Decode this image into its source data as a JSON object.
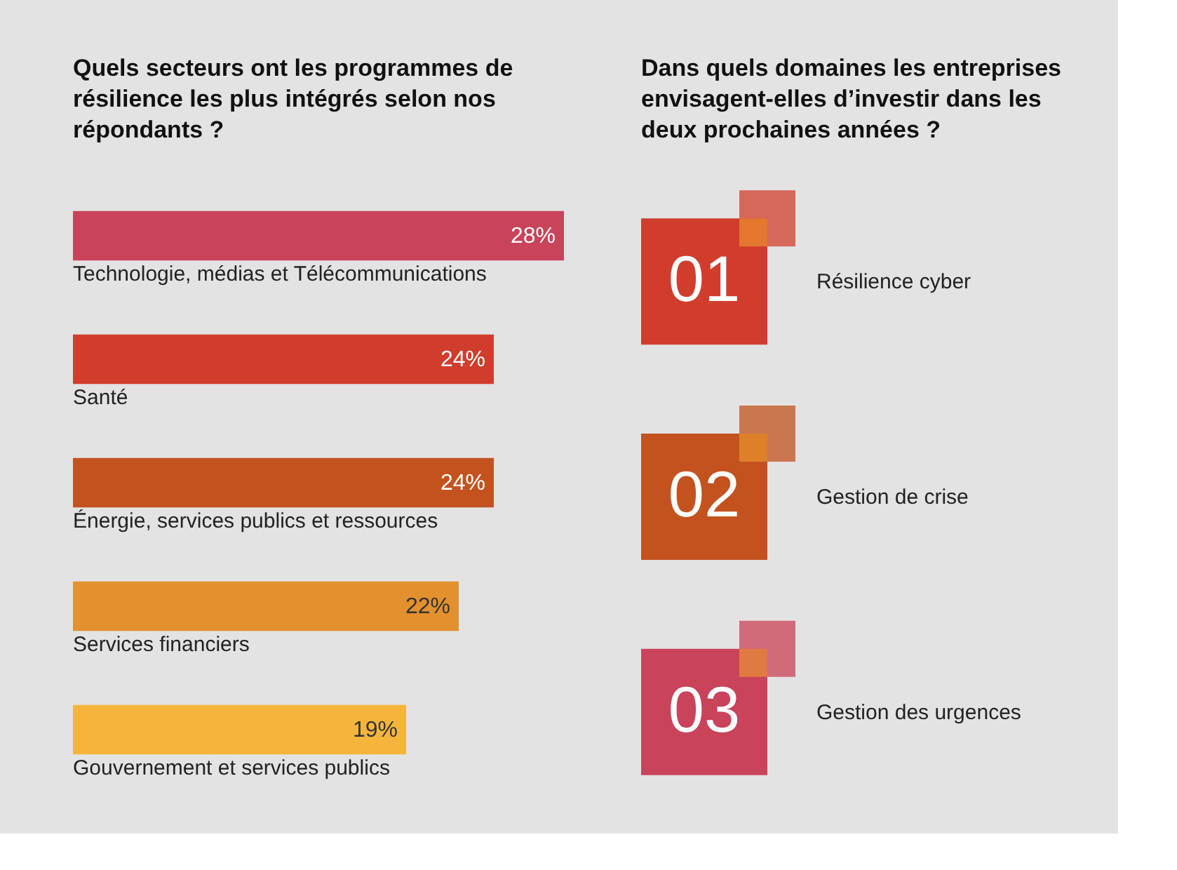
{
  "chart_data": [
    {
      "type": "bar",
      "orientation": "horizontal",
      "title": "Quels secteurs ont les programmes de résilience les plus intégrés selon nos répondants ?",
      "categories": [
        "Technologie, médias et Télécommunications",
        "Santé",
        "Énergie, services publics et ressources",
        "Services financiers",
        "Gouvernement et services publics"
      ],
      "values": [
        28,
        24,
        24,
        22,
        19
      ],
      "colors": [
        "#c9435a",
        "#d13d2c",
        "#c4521f",
        "#e3902f",
        "#f5b53c"
      ],
      "value_labels": [
        "28%",
        "24%",
        "24%",
        "22%",
        "19%"
      ]
    },
    {
      "type": "other",
      "title": "Dans quels domaines les entreprises envisagent-elles d’investir dans les deux prochaines années ?",
      "categories": [
        "Résilience cyber",
        "Gestion de crise",
        "Gestion des urgences"
      ],
      "value_labels": [
        "01",
        "02",
        "03"
      ],
      "colors": [
        "#d13d2c",
        "#c4521f",
        "#c9435a"
      ]
    }
  ]
}
